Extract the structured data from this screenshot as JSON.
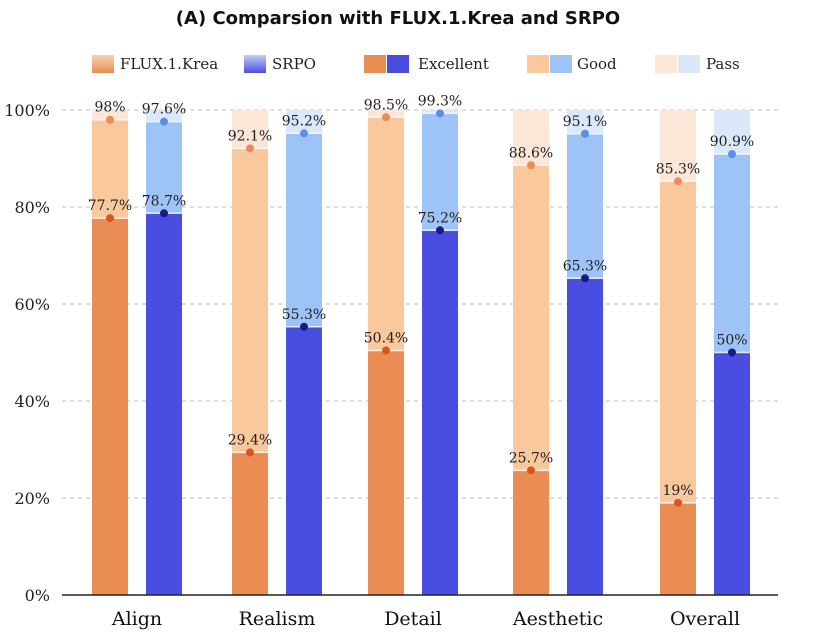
{
  "chart_data": {
    "type": "bar",
    "title": "(A) Comparsion with FLUX.1.Krea and SRPO",
    "categories": [
      "Align",
      "Realism",
      "Detail",
      "Aesthetic",
      "Overall"
    ],
    "ylim": [
      0,
      100
    ],
    "yticks": [
      0,
      20,
      40,
      60,
      80,
      100
    ],
    "ytick_labels": [
      "0%",
      "20%",
      "40%",
      "60%",
      "80%",
      "100%"
    ],
    "grid": true,
    "legend_position": "top",
    "legend": [
      {
        "label": "FLUX.1.Krea",
        "kind": "model",
        "color_top": "#f9d2b4",
        "color_bottom": "#ea8d55"
      },
      {
        "label": "SRPO",
        "kind": "model",
        "color_top": "#c3cef6",
        "color_bottom": "#4a4ee0"
      },
      {
        "label": "Excellent",
        "kind": "tier",
        "colors": [
          "#ea8d55",
          "#4a4ee0"
        ]
      },
      {
        "label": "Good",
        "kind": "tier",
        "colors": [
          "#f9c89d",
          "#9ec3f6"
        ]
      },
      {
        "label": "Pass",
        "kind": "tier",
        "colors": [
          "#fbe6d8",
          "#dbe8fa"
        ]
      }
    ],
    "series": [
      {
        "name": "FLUX.1.Krea",
        "colors": {
          "excellent": "#ea8d55",
          "good": "#f9c89d",
          "pass": "#fbe6d8",
          "dot_excellent": "#d9551a",
          "dot_good": "#ef8a55"
        },
        "excellent": [
          77.7,
          29.4,
          50.4,
          25.7,
          19
        ],
        "good": [
          98,
          92.1,
          98.5,
          88.6,
          85.3
        ],
        "pass": [
          100,
          100,
          100,
          100,
          100
        ],
        "excellent_labels": [
          "77.7%",
          "29.4%",
          "50.4%",
          "25.7%",
          "19%"
        ],
        "good_labels": [
          "98%",
          "92.1%",
          "98.5%",
          "88.6%",
          "85.3%"
        ]
      },
      {
        "name": "SRPO",
        "colors": {
          "excellent": "#4a4ee0",
          "good": "#9ec3f6",
          "pass": "#dbe8fa",
          "dot_excellent": "#161a8a",
          "dot_good": "#5a8fe8"
        },
        "excellent": [
          78.7,
          55.3,
          75.2,
          65.3,
          50
        ],
        "good": [
          97.6,
          95.2,
          99.3,
          95.1,
          90.9
        ],
        "pass": [
          100,
          100,
          100,
          100,
          100
        ],
        "excellent_labels": [
          "78.7%",
          "55.3%",
          "75.2%",
          "65.3%",
          "50%"
        ],
        "good_labels": [
          "97.6%",
          "95.2%",
          "99.3%",
          "95.1%",
          "90.9%"
        ]
      }
    ]
  }
}
